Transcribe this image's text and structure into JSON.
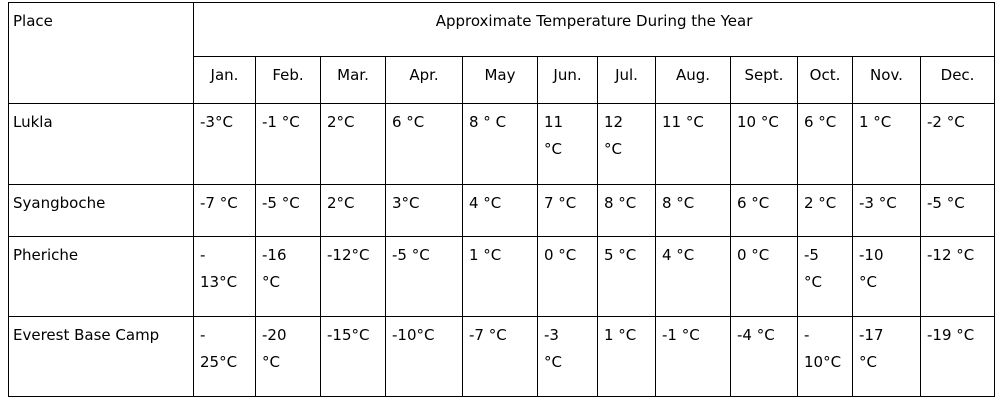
{
  "header": {
    "place": "Place",
    "title": "Approximate Temperature During the Year"
  },
  "months": [
    "Jan.",
    "Feb.",
    "Mar.",
    "Apr.",
    "May",
    "Jun.",
    "Jul.",
    "Aug.",
    "Sept.",
    "Oct.",
    "Nov.",
    "Dec."
  ],
  "rows": [
    {
      "place": "Lukla",
      "values": [
        "-3°C",
        "-1 °C",
        "2°C",
        "6 °C",
        "8 ° C",
        "11\n°C",
        "12\n°C",
        "11 °C",
        "10 °C",
        "6 °C",
        "1 °C",
        "-2 °C"
      ]
    },
    {
      "place": "Syangboche",
      "values": [
        "-7 °C",
        "-5 °C",
        "2°C",
        "3°C",
        "4 °C",
        "7 °C",
        "8 °C",
        "8 °C",
        "6 °C",
        "2 °C",
        "-3 °C",
        "-5 °C"
      ]
    },
    {
      "place": "Pheriche",
      "values": [
        "-\n13°C",
        "-16\n°C",
        "-12°C",
        "-5 °C",
        "1 °C",
        "0 °C",
        "5 °C",
        "4 °C",
        "0 °C",
        "-5\n°C",
        "-10\n°C",
        "-12 °C"
      ]
    },
    {
      "place": "Everest Base Camp",
      "values": [
        "-\n25°C",
        "-20\n°C",
        "-15°C",
        "-10°C",
        "-7 °C",
        "-3\n°C",
        "1 °C",
        "-1 °C",
        "-4 °C",
        "-\n10°C",
        "-17\n°C",
        "-19 °C"
      ]
    }
  ]
}
